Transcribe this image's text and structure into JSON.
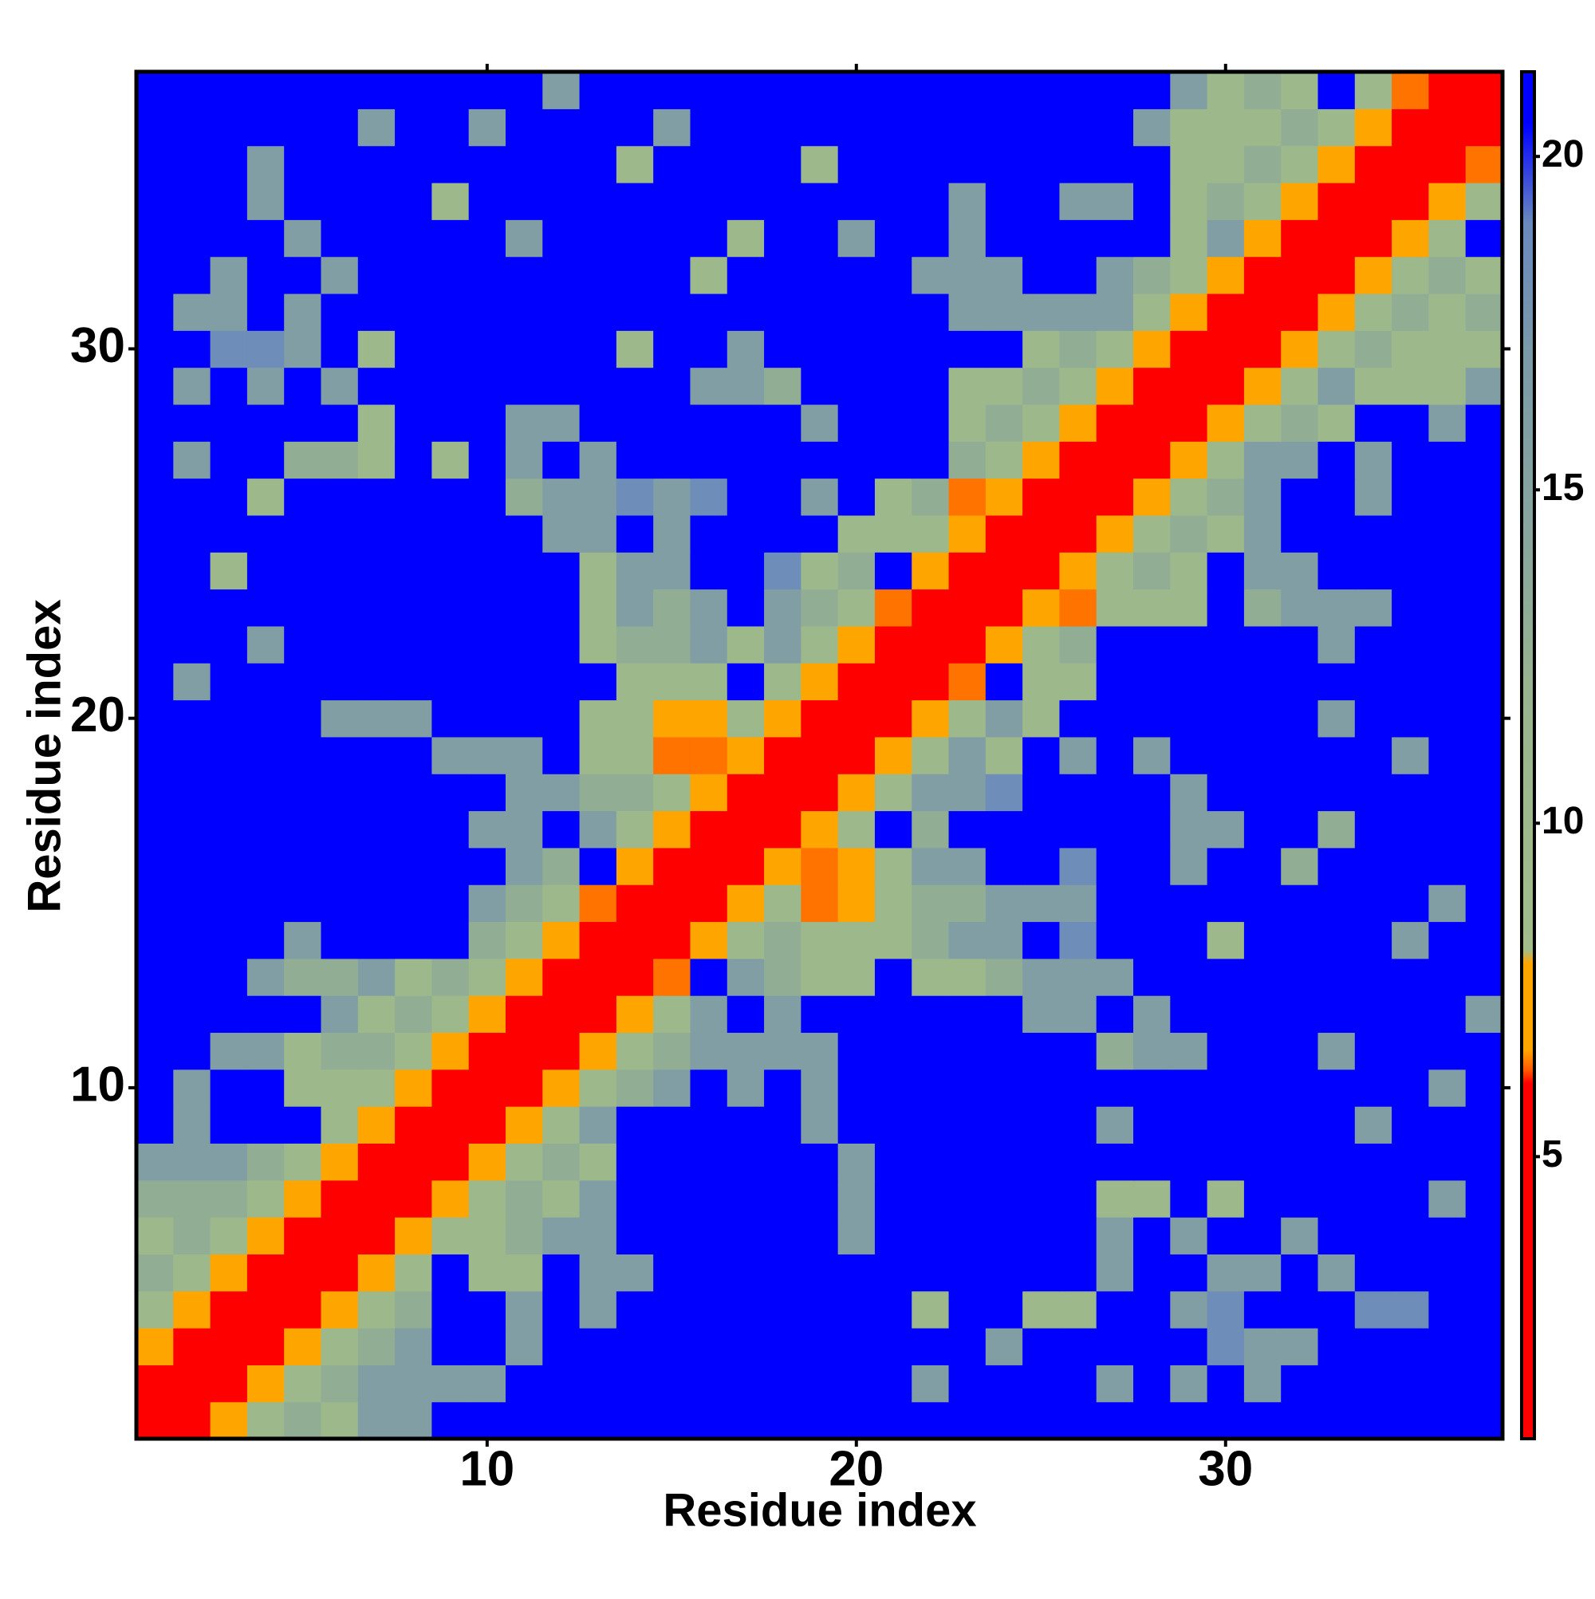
{
  "chart_data": {
    "type": "heatmap",
    "xlabel": "Residue index",
    "ylabel": "Residue index",
    "x": [
      1,
      2,
      3,
      4,
      5,
      6,
      7,
      8,
      9,
      10,
      11,
      12,
      13,
      14,
      15,
      16,
      17,
      18,
      19,
      20,
      21,
      22,
      23,
      24,
      25,
      26,
      27,
      28,
      29,
      30,
      31,
      32,
      33,
      34,
      35,
      36,
      37
    ],
    "y": [
      1,
      2,
      3,
      4,
      5,
      6,
      7,
      8,
      9,
      10,
      11,
      12,
      13,
      14,
      15,
      16,
      17,
      18,
      19,
      20,
      21,
      22,
      23,
      24,
      25,
      26,
      27,
      28,
      29,
      30,
      31,
      32,
      33,
      34,
      35,
      36,
      37
    ],
    "xlim": [
      0.5,
      37.5
    ],
    "ylim": [
      0.5,
      37.5
    ],
    "xticks": [
      10,
      20,
      30
    ],
    "yticks": [
      10,
      20,
      30
    ],
    "colorbar": {
      "lim": [
        0.77,
        21.27
      ],
      "ticks": [
        5,
        10,
        15,
        20
      ]
    },
    "colormap": [
      [
        0.77,
        "#ff0000"
      ],
      [
        6.1,
        "#ff0000"
      ],
      [
        6.3,
        "#ff5a00"
      ],
      [
        6.6,
        "#ffa500"
      ],
      [
        7.9,
        "#ffa500"
      ],
      [
        8.1,
        "#a2bd8b"
      ],
      [
        12,
        "#98b48e"
      ],
      [
        14,
        "#8aa79c"
      ],
      [
        17,
        "#7b9aa8"
      ],
      [
        19,
        "#6a89bd"
      ],
      [
        20.5,
        "#0000ff"
      ],
      [
        21.27,
        "#0000ff"
      ]
    ],
    "z": [
      [
        4,
        4,
        7,
        10,
        13,
        10,
        16,
        16,
        21,
        21,
        21,
        21,
        21,
        21,
        21,
        21,
        21,
        21,
        21,
        21,
        21,
        21,
        21,
        21,
        21,
        21,
        21,
        21,
        21,
        21,
        21,
        21,
        21,
        21,
        21,
        21,
        21
      ],
      [
        4,
        4,
        4,
        7,
        10,
        13,
        16,
        16,
        16,
        16,
        21,
        21,
        21,
        21,
        21,
        21,
        21,
        21,
        21,
        21,
        21,
        16,
        21,
        21,
        21,
        21,
        16,
        21,
        16,
        21,
        16,
        21,
        21,
        21,
        21,
        21,
        21
      ],
      [
        7,
        4,
        4,
        4,
        7,
        10,
        13,
        16,
        21,
        21,
        16,
        21,
        21,
        21,
        21,
        21,
        21,
        21,
        21,
        21,
        21,
        21,
        21,
        16,
        21,
        21,
        21,
        21,
        21,
        18.5,
        16,
        16,
        21,
        21,
        21,
        21,
        21
      ],
      [
        10,
        7,
        4,
        4,
        4,
        7,
        10,
        13,
        21,
        21,
        16,
        21,
        16,
        21,
        21,
        21,
        21,
        21,
        21,
        21,
        21,
        10,
        21,
        21,
        10,
        10,
        21,
        21,
        16,
        18.5,
        21,
        21,
        21,
        18.5,
        18.5,
        21,
        21
      ],
      [
        13,
        10,
        7,
        4,
        4,
        4,
        7,
        10,
        21,
        10,
        10,
        21,
        16,
        16,
        21,
        21,
        21,
        21,
        21,
        21,
        21,
        21,
        21,
        21,
        21,
        21,
        16,
        21,
        21,
        16,
        16,
        21,
        16,
        21,
        21,
        21,
        21
      ],
      [
        10,
        13,
        10,
        7,
        4,
        4,
        4,
        7,
        10,
        10,
        13,
        16,
        16,
        21,
        21,
        21,
        21,
        21,
        21,
        16,
        21,
        21,
        21,
        21,
        21,
        21,
        16,
        21,
        16,
        21,
        21,
        16,
        21,
        21,
        21,
        21,
        21
      ],
      [
        13,
        13,
        13,
        10,
        7,
        4,
        4,
        4,
        7,
        10,
        13,
        10,
        16,
        21,
        21,
        21,
        21,
        21,
        21,
        16,
        21,
        21,
        21,
        21,
        21,
        21,
        10,
        10,
        21,
        10,
        21,
        21,
        21,
        21,
        21,
        16,
        21
      ],
      [
        16,
        16,
        16,
        13,
        10,
        7,
        4,
        4,
        4,
        7,
        10,
        13,
        10,
        21,
        21,
        21,
        21,
        21,
        21,
        16,
        21,
        21,
        21,
        21,
        21,
        21,
        21,
        21,
        21,
        21,
        21,
        21,
        21,
        21,
        21,
        21,
        21
      ],
      [
        21,
        16,
        21,
        21,
        21,
        10,
        7,
        4,
        4,
        4,
        7,
        10,
        16,
        21,
        21,
        21,
        21,
        21,
        16,
        21,
        21,
        21,
        21,
        21,
        21,
        21,
        16,
        21,
        21,
        21,
        21,
        21,
        21,
        16,
        21,
        21,
        21
      ],
      [
        21,
        16,
        21,
        21,
        10,
        10,
        10,
        7,
        4,
        4,
        4,
        7,
        10,
        13,
        16,
        21,
        16,
        21,
        16,
        21,
        21,
        21,
        21,
        21,
        21,
        21,
        21,
        21,
        21,
        21,
        21,
        21,
        21,
        21,
        21,
        16,
        21
      ],
      [
        21,
        21,
        16,
        16,
        10,
        13,
        13,
        10,
        7,
        4,
        4,
        4,
        7,
        10,
        13,
        16,
        16,
        16,
        16,
        21,
        21,
        21,
        21,
        21,
        21,
        21,
        13,
        16,
        16,
        21,
        21,
        21,
        16,
        21,
        21,
        21,
        21
      ],
      [
        21,
        21,
        21,
        21,
        21,
        16,
        10,
        13,
        10,
        7,
        4,
        4,
        4,
        7,
        10,
        16,
        21,
        16,
        21,
        21,
        21,
        21,
        21,
        21,
        16,
        16,
        21,
        16,
        21,
        21,
        21,
        21,
        21,
        21,
        21,
        21,
        16
      ],
      [
        21,
        21,
        21,
        16,
        13,
        13,
        16,
        10,
        13,
        10,
        7,
        4,
        4,
        4,
        6.4,
        21,
        16,
        13,
        10,
        10,
        21,
        10,
        10,
        13,
        16,
        16,
        16,
        21,
        21,
        21,
        21,
        21,
        21,
        21,
        21,
        21,
        21
      ],
      [
        21,
        21,
        21,
        21,
        16,
        21,
        21,
        21,
        21,
        13,
        10,
        7,
        4,
        4,
        4,
        7,
        10,
        13,
        10,
        10,
        10,
        13,
        16,
        16,
        21,
        18.5,
        21,
        21,
        21,
        10,
        21,
        21,
        21,
        21,
        16,
        21,
        21
      ],
      [
        21,
        21,
        21,
        21,
        21,
        21,
        21,
        21,
        21,
        16,
        13,
        10,
        6.4,
        4,
        4,
        4,
        7,
        10,
        6.4,
        7,
        10,
        13,
        13,
        16,
        16,
        16,
        21,
        21,
        21,
        21,
        21,
        21,
        21,
        21,
        21,
        16,
        21
      ],
      [
        21,
        21,
        21,
        21,
        21,
        21,
        21,
        21,
        21,
        21,
        16,
        13,
        21,
        7,
        4,
        4,
        4,
        7,
        6.4,
        7,
        10,
        16,
        16,
        21,
        21,
        18.5,
        21,
        21,
        16,
        21,
        21,
        13,
        21,
        21,
        21,
        21,
        21
      ],
      [
        21,
        21,
        21,
        21,
        21,
        21,
        21,
        21,
        21,
        16,
        16,
        21,
        16,
        10,
        7,
        4,
        4,
        4,
        7,
        10,
        21,
        13,
        21,
        21,
        21,
        21,
        21,
        21,
        16,
        16,
        21,
        21,
        13,
        21,
        21,
        21,
        21
      ],
      [
        21,
        21,
        21,
        21,
        21,
        21,
        21,
        21,
        21,
        21,
        16,
        16,
        13,
        13,
        10,
        7,
        4,
        4,
        4,
        7,
        10,
        16,
        16,
        18.5,
        21,
        21,
        21,
        21,
        16,
        21,
        21,
        21,
        21,
        21,
        21,
        21,
        21
      ],
      [
        21,
        21,
        21,
        21,
        21,
        21,
        21,
        21,
        16,
        16,
        16,
        21,
        10,
        10,
        6.4,
        6.4,
        7,
        4,
        4,
        4,
        7,
        10,
        16,
        10,
        21,
        16,
        21,
        16,
        21,
        21,
        21,
        21,
        21,
        21,
        16,
        21,
        21
      ],
      [
        21,
        21,
        21,
        21,
        21,
        16,
        16,
        16,
        21,
        21,
        21,
        21,
        10,
        10,
        7,
        7,
        10,
        7,
        4,
        4,
        4,
        7,
        10,
        16,
        10,
        21,
        21,
        21,
        21,
        21,
        21,
        21,
        16,
        21,
        21,
        21,
        21
      ],
      [
        21,
        16,
        21,
        21,
        21,
        21,
        21,
        21,
        21,
        21,
        21,
        21,
        21,
        10,
        10,
        10,
        21,
        10,
        7,
        4,
        4,
        4,
        6.4,
        21,
        10,
        10,
        21,
        21,
        21,
        21,
        21,
        21,
        21,
        21,
        21,
        21,
        21
      ],
      [
        21,
        21,
        21,
        16,
        21,
        21,
        21,
        21,
        21,
        21,
        21,
        21,
        10,
        13,
        13,
        16,
        10,
        16,
        10,
        7,
        4,
        4,
        4,
        7,
        10,
        13,
        21,
        21,
        21,
        21,
        21,
        21,
        16,
        21,
        21,
        21,
        21
      ],
      [
        21,
        21,
        21,
        21,
        21,
        21,
        21,
        21,
        21,
        21,
        21,
        21,
        10,
        16,
        13,
        16,
        21,
        16,
        13,
        10,
        6.4,
        4,
        4,
        4,
        7,
        6.4,
        10,
        10,
        10,
        21,
        13,
        16,
        16,
        16,
        21,
        21,
        21
      ],
      [
        21,
        21,
        10,
        21,
        21,
        21,
        21,
        21,
        21,
        21,
        21,
        21,
        10,
        16,
        16,
        21,
        21,
        18.5,
        10,
        13,
        21,
        7,
        4,
        4,
        4,
        7,
        10,
        13,
        10,
        21,
        16,
        16,
        21,
        21,
        21,
        21,
        21
      ],
      [
        21,
        21,
        21,
        21,
        21,
        21,
        21,
        21,
        21,
        21,
        21,
        16,
        16,
        21,
        16,
        21,
        21,
        21,
        21,
        10,
        10,
        10,
        7,
        4,
        4,
        4,
        7,
        10,
        13,
        10,
        16,
        21,
        21,
        21,
        21,
        21,
        21
      ],
      [
        21,
        21,
        21,
        10,
        21,
        21,
        21,
        21,
        21,
        21,
        13,
        16,
        16,
        18.5,
        16,
        18.5,
        21,
        21,
        16,
        21,
        10,
        13,
        6.4,
        7,
        4,
        4,
        4,
        7,
        10,
        13,
        16,
        21,
        21,
        16,
        21,
        21,
        21
      ],
      [
        21,
        16,
        21,
        21,
        13,
        13,
        10,
        21,
        10,
        21,
        16,
        21,
        16,
        21,
        21,
        21,
        21,
        21,
        21,
        21,
        21,
        21,
        13,
        10,
        7,
        4,
        4,
        4,
        7,
        10,
        16,
        16,
        21,
        16,
        21,
        21,
        21
      ],
      [
        21,
        21,
        21,
        21,
        21,
        21,
        10,
        21,
        21,
        21,
        16,
        16,
        21,
        21,
        21,
        21,
        21,
        21,
        16,
        21,
        21,
        21,
        10,
        13,
        10,
        7,
        4,
        4,
        4,
        7,
        10,
        13,
        10,
        21,
        21,
        16,
        21
      ],
      [
        21,
        16,
        21,
        16,
        21,
        16,
        21,
        21,
        21,
        21,
        21,
        21,
        21,
        21,
        21,
        16,
        16,
        13,
        21,
        21,
        21,
        21,
        10,
        10,
        13,
        10,
        7,
        4,
        4,
        4,
        7,
        10,
        16,
        10,
        10,
        10,
        16
      ],
      [
        21,
        21,
        18.5,
        18.5,
        16,
        21,
        10,
        21,
        21,
        21,
        21,
        21,
        21,
        10,
        21,
        21,
        16,
        21,
        21,
        21,
        21,
        21,
        21,
        21,
        10,
        13,
        10,
        7,
        4,
        4,
        4,
        7,
        10,
        13,
        10,
        10,
        10
      ],
      [
        21,
        16,
        16,
        21,
        16,
        21,
        21,
        21,
        21,
        21,
        21,
        21,
        21,
        21,
        21,
        21,
        21,
        21,
        21,
        21,
        21,
        21,
        16,
        16,
        16,
        16,
        16,
        10,
        7,
        4,
        4,
        4,
        7,
        10,
        13,
        10,
        13
      ],
      [
        21,
        21,
        16,
        21,
        21,
        16,
        21,
        21,
        21,
        21,
        21,
        21,
        21,
        21,
        21,
        10,
        21,
        21,
        21,
        21,
        21,
        16,
        16,
        16,
        21,
        21,
        16,
        13,
        10,
        7,
        4,
        4,
        4,
        7,
        10,
        13,
        10
      ],
      [
        21,
        21,
        21,
        21,
        16,
        21,
        21,
        21,
        21,
        21,
        16,
        21,
        21,
        21,
        21,
        21,
        10,
        21,
        21,
        16,
        21,
        21,
        16,
        21,
        21,
        21,
        21,
        21,
        10,
        16,
        7,
        4,
        4,
        4,
        7,
        10,
        21
      ],
      [
        21,
        21,
        21,
        16,
        21,
        21,
        21,
        21,
        10,
        21,
        21,
        21,
        21,
        21,
        21,
        21,
        21,
        21,
        21,
        21,
        21,
        21,
        16,
        21,
        21,
        16,
        16,
        21,
        10,
        13,
        10,
        7,
        4,
        4,
        4,
        7,
        10
      ],
      [
        21,
        21,
        21,
        16,
        21,
        21,
        21,
        21,
        21,
        21,
        21,
        21,
        21,
        10,
        21,
        21,
        21,
        21,
        10,
        21,
        21,
        21,
        21,
        21,
        21,
        21,
        21,
        21,
        10,
        10,
        13,
        10,
        7,
        4,
        4,
        4,
        6.4
      ],
      [
        21,
        21,
        21,
        21,
        21,
        21,
        16,
        21,
        21,
        16,
        21,
        21,
        21,
        21,
        16,
        21,
        21,
        21,
        21,
        21,
        21,
        21,
        21,
        21,
        21,
        21,
        21,
        16,
        10,
        10,
        10,
        13,
        10,
        7,
        4,
        4,
        4
      ],
      [
        21,
        21,
        21,
        21,
        21,
        21,
        21,
        21,
        21,
        21,
        21,
        16,
        21,
        21,
        21,
        21,
        21,
        21,
        21,
        21,
        21,
        21,
        21,
        21,
        21,
        21,
        21,
        21,
        16,
        10,
        13,
        10,
        21,
        10,
        6.4,
        4,
        4
      ]
    ]
  }
}
